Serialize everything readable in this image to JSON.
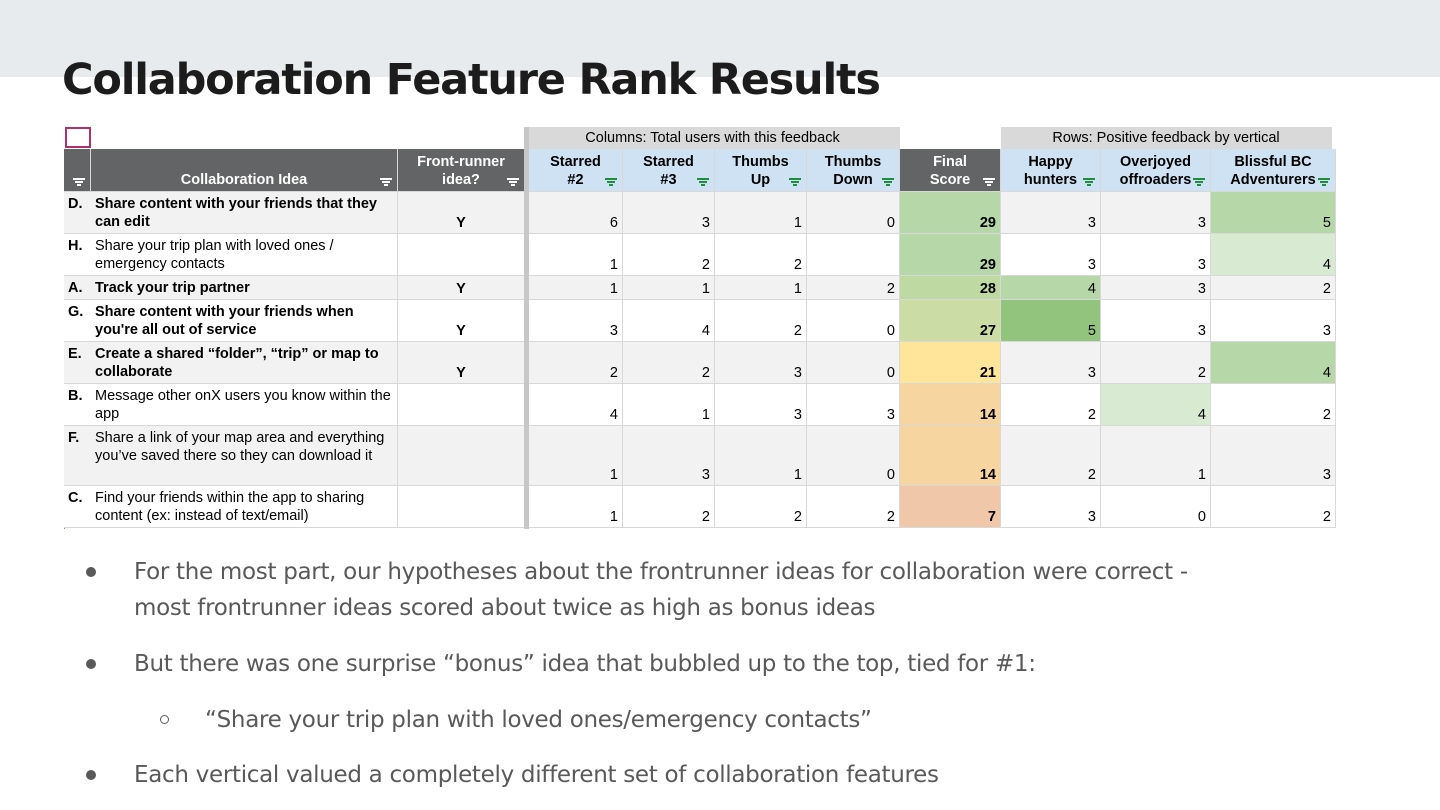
{
  "slide": {
    "title": "Collaboration Feature Rank Results"
  },
  "table": {
    "group_headers": {
      "columns": "Columns: Total users with this feedback",
      "rows": "Rows: Positive feedback by vertical"
    },
    "headers": {
      "idea": "Collaboration Idea",
      "frontrunner": [
        "Front-runner",
        "idea?"
      ],
      "starred2": [
        "Starred",
        "#2"
      ],
      "starred3": [
        "Starred",
        "#3"
      ],
      "thumbs_up": [
        "Thumbs",
        "Up"
      ],
      "thumbs_down": [
        "Thumbs",
        "Down"
      ],
      "final": [
        "Final",
        "Score"
      ],
      "happy": [
        "Happy",
        "hunters"
      ],
      "overjoyed": [
        "Overjoyed",
        "offroaders"
      ],
      "blissful": [
        "Blissful BC",
        "Adventurers"
      ]
    },
    "rows": [
      {
        "letter": "D.",
        "idea": "Share content with your friends that they can edit",
        "frontrunner": "Y",
        "starred2": "6",
        "starred3": "3",
        "thumbs_up": "1",
        "thumbs_down": "0",
        "final": "29",
        "happy": "3",
        "overjoyed": "3",
        "blissful": "5"
      },
      {
        "letter": "H.",
        "idea": "Share your trip plan with loved ones / emergency contacts",
        "frontrunner": "",
        "starred2": "1",
        "starred3": "2",
        "thumbs_up": "2",
        "thumbs_down": "",
        "final": "29",
        "happy": "3",
        "overjoyed": "3",
        "blissful": "4"
      },
      {
        "letter": "A.",
        "idea": "Track your trip partner",
        "frontrunner": "Y",
        "starred2": "1",
        "starred3": "1",
        "thumbs_up": "1",
        "thumbs_down": "2",
        "final": "28",
        "happy": "4",
        "overjoyed": "3",
        "blissful": "2"
      },
      {
        "letter": "G.",
        "idea": "Share content with your friends when you're all out of service",
        "frontrunner": "Y",
        "starred2": "3",
        "starred3": "4",
        "thumbs_up": "2",
        "thumbs_down": "0",
        "final": "27",
        "happy": "5",
        "overjoyed": "3",
        "blissful": "3"
      },
      {
        "letter": "E.",
        "idea": "Create a shared “folder”, “trip” or map to collaborate",
        "frontrunner": "Y",
        "starred2": "2",
        "starred3": "2",
        "thumbs_up": "3",
        "thumbs_down": "0",
        "final": "21",
        "happy": "3",
        "overjoyed": "2",
        "blissful": "4"
      },
      {
        "letter": "B.",
        "idea": "Message other onX users you know within the app",
        "frontrunner": "",
        "starred2": "4",
        "starred3": "1",
        "thumbs_up": "3",
        "thumbs_down": "3",
        "final": "14",
        "happy": "2",
        "overjoyed": "4",
        "blissful": "2"
      },
      {
        "letter": "F.",
        "idea": "Share a link of your map area and everything you’ve saved there so they can download it",
        "frontrunner": "",
        "starred2": "1",
        "starred3": "3",
        "thumbs_up": "1",
        "thumbs_down": "0",
        "final": "14",
        "happy": "2",
        "overjoyed": "1",
        "blissful": "3"
      },
      {
        "letter": "C.",
        "idea": "Find your friends within the app to sharing content (ex: instead of text/email)",
        "frontrunner": "",
        "starred2": "1",
        "starred3": "2",
        "thumbs_up": "2",
        "thumbs_down": "2",
        "final": "7",
        "happy": "3",
        "overjoyed": "0",
        "blissful": "2"
      }
    ],
    "colors": {
      "header_dark": "#636466",
      "header_blue": "#cfe2f3",
      "final_29": "#b6d7a8",
      "final_28": "#bfd9a3",
      "final_27": "#cbdda4",
      "final_21": "#ffe599",
      "final_14": "#f6d5a0",
      "final_7": "#f0c7a8",
      "green_5": "#93c47d",
      "green_4": "#b6d7a8",
      "green_light": "#d9ead3"
    }
  },
  "bullets": [
    {
      "text": "For the most part, our hypotheses about the frontrunner ideas for collaboration were correct -",
      "text2": "most frontrunner ideas scored about twice as high as bonus ideas"
    },
    {
      "text": "But there was one surprise “bonus” idea that bubbled up to the top, tied for #1:"
    },
    {
      "text": "“Share your trip plan with loved ones/emergency contacts”"
    },
    {
      "text": "Each vertical valued a completely different set of collaboration features"
    }
  ]
}
